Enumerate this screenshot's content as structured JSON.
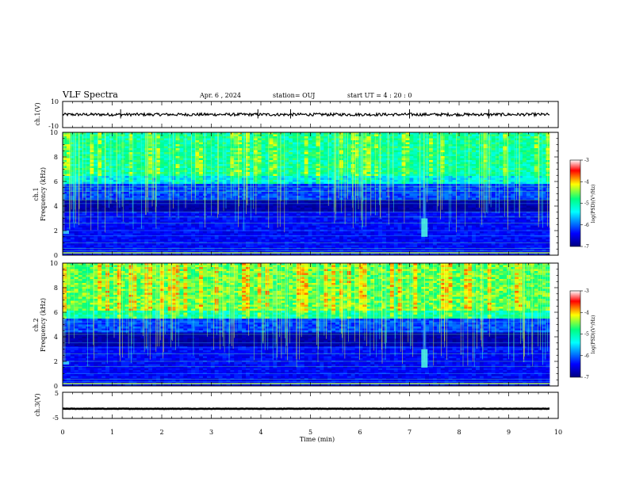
{
  "header": {
    "title": "VLF Spectra",
    "date": "Apr. 6 , 2024",
    "station": "station= OUJ",
    "start": "start  UT =   4 : 20 : 0"
  },
  "chart_data": [
    {
      "type": "line",
      "panel": "ch1-waveform",
      "ylabel": "ch.1(V)",
      "ylim": [
        -10,
        10
      ],
      "ytick_labels": [
        "10",
        "-10"
      ],
      "baseline": 0
    },
    {
      "type": "heatmap",
      "panel": "ch1-spectrogram",
      "ylabel_lines": [
        "ch.1",
        "Frequency  (kHz)"
      ],
      "ylim": [
        0,
        10
      ],
      "ytick_labels": [
        "0",
        "2",
        "4",
        "6",
        "8",
        "10"
      ],
      "colorbar": {
        "label": "log(PSD)(V²/Hz)",
        "range": [
          -7,
          -3
        ],
        "tick_labels": [
          "-3",
          "-4",
          "-5",
          "-6",
          "-7"
        ]
      },
      "features": {
        "chorus_band_khz": [
          5.8,
          10
        ],
        "dark_band_khz": [
          3.5,
          4.5
        ],
        "event_minute": 7.3,
        "event_freq_khz": [
          1.5,
          3
        ]
      }
    },
    {
      "type": "heatmap",
      "panel": "ch2-spectrogram",
      "ylabel_lines": [
        "ch.2",
        "Frequency  (kHz)"
      ],
      "ylim": [
        0,
        10
      ],
      "ytick_labels": [
        "0",
        "2",
        "4",
        "6",
        "8",
        "10"
      ],
      "colorbar": {
        "label": "log(PSD)(V²/Hz)",
        "range": [
          -7,
          -3
        ],
        "tick_labels": [
          "-3",
          "-4",
          "-5",
          "-6",
          "-7"
        ]
      },
      "features": {
        "chorus_band_khz": [
          5.5,
          10
        ],
        "dark_band_khz": [
          3.3,
          4.3
        ],
        "event_minute": 7.3,
        "event_freq_khz": [
          1.5,
          3
        ]
      }
    },
    {
      "type": "line",
      "panel": "ch3-waveform",
      "ylabel": "ch.3(V)",
      "ylim": [
        -5,
        5
      ],
      "ytick_labels": [
        "5",
        "-5"
      ],
      "baseline": -1.3
    }
  ],
  "xaxis": {
    "label": "Time  (min)",
    "range": [
      0,
      10
    ],
    "data_end": 9.83,
    "tick_labels": [
      "0",
      "1",
      "2",
      "3",
      "4",
      "5",
      "6",
      "7",
      "8",
      "9",
      "10"
    ]
  },
  "colors": {
    "colormap": [
      "#000080",
      "#0000ff",
      "#00ffff",
      "#00ff80",
      "#ffff00",
      "#ff0000",
      "#ffffff"
    ]
  }
}
